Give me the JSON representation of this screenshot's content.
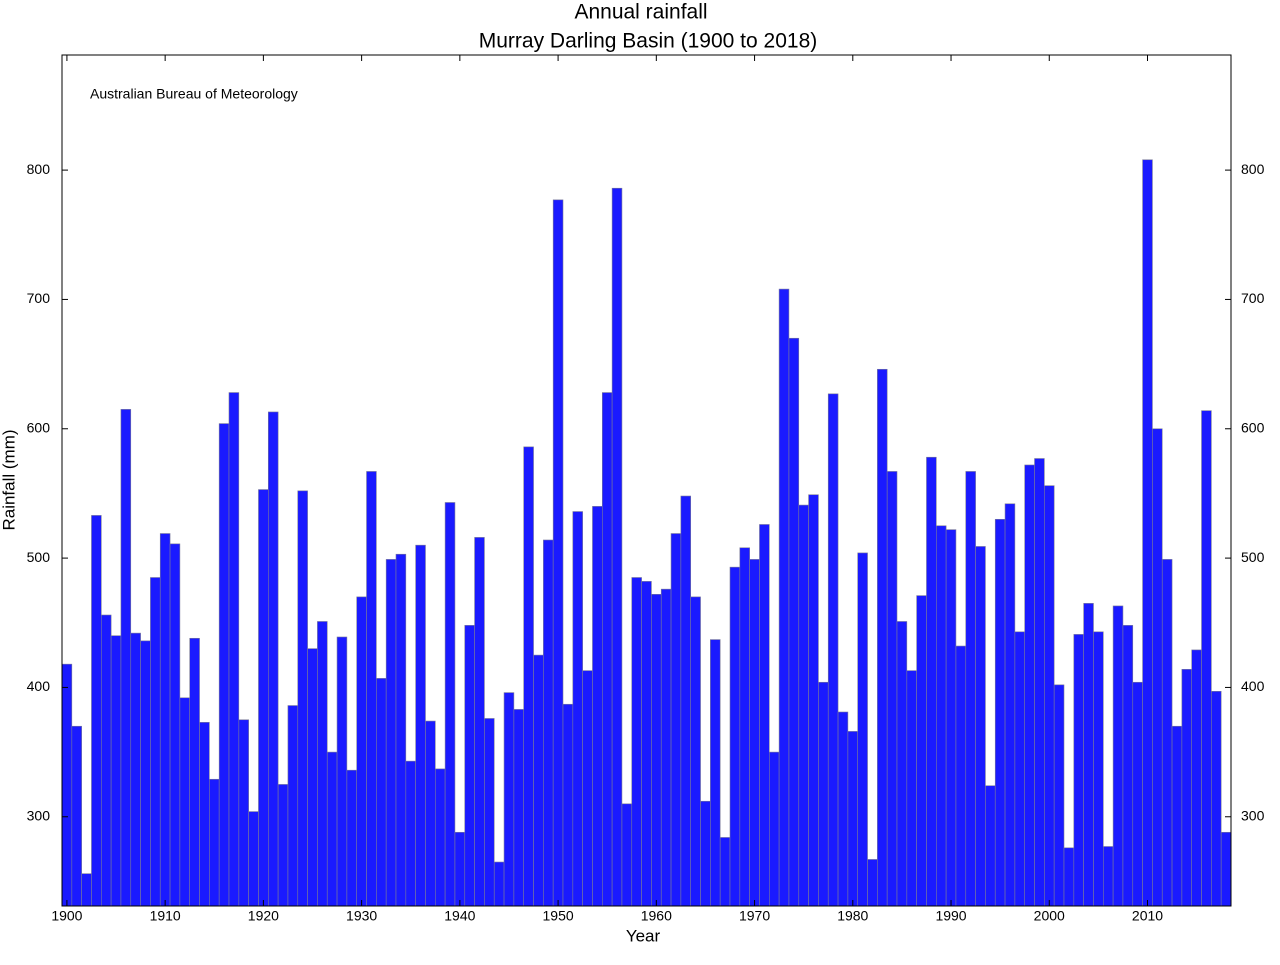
{
  "chart_data": {
    "type": "bar",
    "title": "Annual rainfall",
    "subtitle": "Murray Darling Basin (1900 to 2018)",
    "annotation": "Australian Bureau of Meteorology",
    "xlabel": "Year",
    "ylabel": "Rainfall (mm)",
    "color": "#1a1aff",
    "x": [
      1900,
      1901,
      1902,
      1903,
      1904,
      1905,
      1906,
      1907,
      1908,
      1909,
      1910,
      1911,
      1912,
      1913,
      1914,
      1915,
      1916,
      1917,
      1918,
      1919,
      1920,
      1921,
      1922,
      1923,
      1924,
      1925,
      1926,
      1927,
      1928,
      1929,
      1930,
      1931,
      1932,
      1933,
      1934,
      1935,
      1936,
      1937,
      1938,
      1939,
      1940,
      1941,
      1942,
      1943,
      1944,
      1945,
      1946,
      1947,
      1948,
      1949,
      1950,
      1951,
      1952,
      1953,
      1954,
      1955,
      1956,
      1957,
      1958,
      1959,
      1960,
      1961,
      1962,
      1963,
      1964,
      1965,
      1966,
      1967,
      1968,
      1969,
      1970,
      1971,
      1972,
      1973,
      1974,
      1975,
      1976,
      1977,
      1978,
      1979,
      1980,
      1981,
      1982,
      1983,
      1984,
      1985,
      1986,
      1987,
      1988,
      1989,
      1990,
      1991,
      1992,
      1993,
      1994,
      1995,
      1996,
      1997,
      1998,
      1999,
      2000,
      2001,
      2002,
      2003,
      2004,
      2005,
      2006,
      2007,
      2008,
      2009,
      2010,
      2011,
      2012,
      2013,
      2014,
      2015,
      2016,
      2017,
      2018
    ],
    "values": [
      418,
      370,
      256,
      533,
      456,
      440,
      615,
      442,
      436,
      485,
      519,
      511,
      392,
      438,
      373,
      329,
      604,
      628,
      375,
      304,
      553,
      613,
      325,
      386,
      552,
      430,
      451,
      350,
      439,
      336,
      470,
      567,
      407,
      499,
      503,
      343,
      510,
      374,
      337,
      543,
      288,
      448,
      516,
      376,
      265,
      396,
      383,
      586,
      425,
      514,
      777,
      387,
      536,
      413,
      540,
      628,
      786,
      310,
      485,
      482,
      472,
      476,
      519,
      548,
      470,
      312,
      437,
      284,
      493,
      508,
      499,
      526,
      350,
      708,
      670,
      541,
      549,
      404,
      627,
      381,
      366,
      504,
      267,
      646,
      567,
      451,
      413,
      471,
      578,
      525,
      522,
      432,
      567,
      509,
      324,
      530,
      542,
      443,
      572,
      577,
      556,
      402,
      276,
      441,
      465,
      443,
      277,
      463,
      448,
      404,
      808,
      600,
      499,
      370,
      414,
      429,
      614,
      397,
      288
    ],
    "xlim": [
      1899.5,
      2018.5
    ],
    "xticks": [
      1900,
      1910,
      1920,
      1930,
      1940,
      1950,
      1960,
      1970,
      1980,
      1990,
      2000,
      2010
    ],
    "ylim": [
      231,
      889
    ],
    "yticks": [
      300,
      400,
      500,
      600,
      700,
      800
    ]
  }
}
